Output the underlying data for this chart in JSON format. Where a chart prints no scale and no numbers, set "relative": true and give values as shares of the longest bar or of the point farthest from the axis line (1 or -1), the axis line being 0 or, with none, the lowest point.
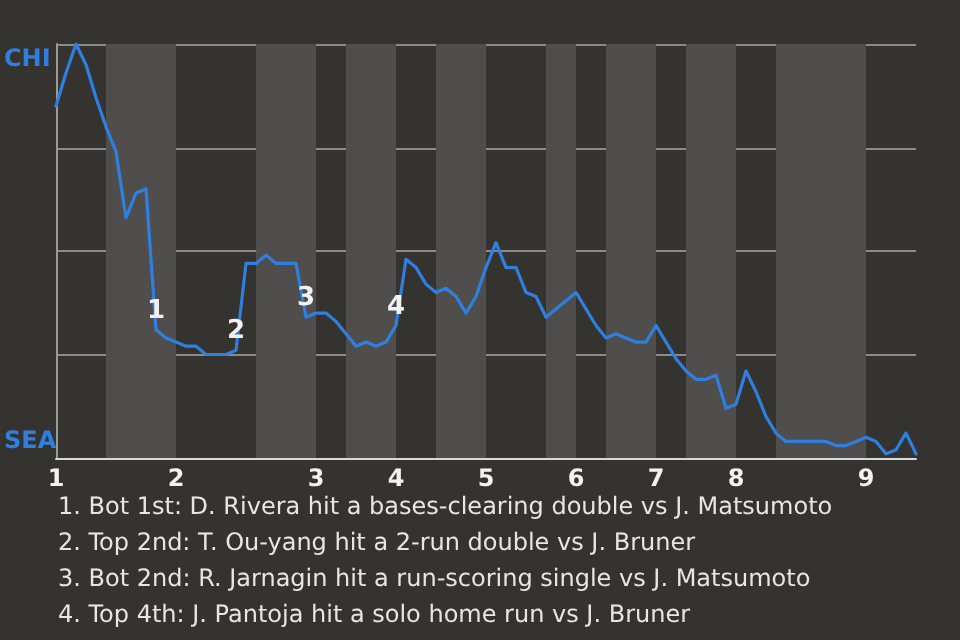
{
  "chart_data": {
    "type": "line",
    "relative": true,
    "categories": [
      "1",
      null,
      null,
      null,
      null,
      null,
      null,
      null,
      null,
      null,
      null,
      null,
      "2",
      null,
      null,
      null,
      null,
      null,
      null,
      null,
      null,
      null,
      null,
      null,
      null,
      null,
      "3",
      null,
      null,
      null,
      null,
      null,
      null,
      null,
      "4",
      null,
      null,
      null,
      null,
      null,
      null,
      null,
      null,
      "5",
      null,
      null,
      null,
      null,
      null,
      null,
      null,
      null,
      "6",
      null,
      null,
      null,
      null,
      null,
      null,
      null,
      "7",
      null,
      null,
      null,
      null,
      null,
      null,
      null,
      "8",
      null,
      null,
      null,
      null,
      null,
      null,
      null,
      null,
      null,
      null,
      null,
      null,
      "9",
      null,
      null,
      null,
      null,
      null
    ],
    "series": [
      {
        "color": "#2f7fe0",
        "values": [
          0.85,
          0.93,
          1,
          0.95,
          0.87,
          0.8,
          0.74,
          0.58,
          0.64,
          0.65,
          0.31,
          0.29,
          0.28,
          0.27,
          0.27,
          0.25,
          0.25,
          0.25,
          0.26,
          0.47,
          0.47,
          0.49,
          0.47,
          0.47,
          0.47,
          0.34,
          0.35,
          0.35,
          0.33,
          0.3,
          0.27,
          0.28,
          0.27,
          0.28,
          0.32,
          0.48,
          0.46,
          0.42,
          0.4,
          0.41,
          0.39,
          0.35,
          0.39,
          0.46,
          0.52,
          0.46,
          0.46,
          0.4,
          0.39,
          0.34,
          0.36,
          0.38,
          0.4,
          0.36,
          0.32,
          0.29,
          0.3,
          0.29,
          0.28,
          0.28,
          0.32,
          0.28,
          0.24,
          0.21,
          0.19,
          0.19,
          0.2,
          0.12,
          0.13,
          0.21,
          0.16,
          0.1,
          0.06,
          0.04,
          0.04,
          0.04,
          0.04,
          0.04,
          0.03,
          0.03,
          0.04,
          0.05,
          0.04,
          0.01,
          0.02,
          0.06,
          0.01
        ]
      }
    ],
    "grid": "y",
    "marker": "none",
    "line_style": "solid",
    "annotations": [
      "CHI",
      "SEA",
      {
        "text": "1",
        "y": 0.31
      },
      {
        "text": "2",
        "y": 0.26
      },
      {
        "text": "3",
        "y": 0.34
      },
      {
        "text": "4",
        "y": 0.32
      },
      "1. Bot 1st: D. Rivera hit a bases-clearing double vs J. Matsumoto",
      "2. Top 2nd: T. Ou-yang hit a 2-run double vs J. Bruner",
      "3. Bot 2nd: R. Jarnagin hit a run-scoring single vs J. Matsumoto",
      "4. Top 4th: J. Pantoja hit a solo home run vs J. Bruner"
    ]
  }
}
